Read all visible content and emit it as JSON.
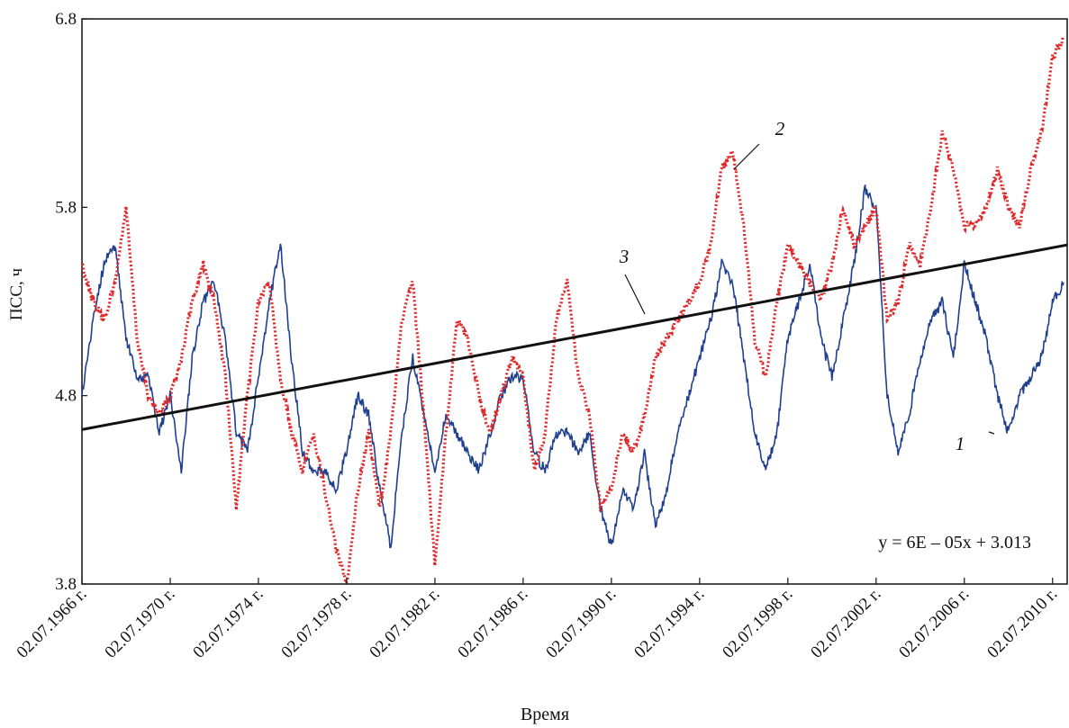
{
  "chart_data": {
    "type": "line",
    "xlabel": "Время",
    "ylabel": "ПСС, ч",
    "ylim": [
      3.8,
      6.8
    ],
    "xlim": [
      "1966-07-02",
      "2011-03-01"
    ],
    "yticks": [
      "3.8",
      "4.8",
      "5.8",
      "6.8"
    ],
    "xticks": [
      "02.07.1966 г.",
      "02.07.1970 г.",
      "02.07.1974 г.",
      "02.07.1978 г.",
      "02.07.1982 г.",
      "02.07.1986 г.",
      "02.07.1990 г.",
      "02.07.1994 г.",
      "02.07.1998 г.",
      "02.07.2002 г.",
      "02.07.2006 г.",
      "02.07.2010 г."
    ],
    "xtick_dates": [
      "1966-07-02",
      "1970-07-02",
      "1974-07-02",
      "1978-07-02",
      "1982-07-02",
      "1986-07-02",
      "1990-07-02",
      "1994-07-02",
      "1998-07-02",
      "2002-07-02",
      "2006-07-02",
      "2010-07-02"
    ],
    "grid": false,
    "equation": "y = 6E – 05x + 3.013",
    "series": [
      {
        "label": "1",
        "color": "#1f3f8f",
        "style": "solid",
        "x": [
          "1966-07",
          "1967-01",
          "1967-07",
          "1968-01",
          "1968-07",
          "1969-01",
          "1969-07",
          "1970-01",
          "1970-07",
          "1971-01",
          "1971-07",
          "1972-01",
          "1972-07",
          "1973-01",
          "1973-07",
          "1974-01",
          "1974-07",
          "1975-01",
          "1975-07",
          "1976-01",
          "1976-07",
          "1977-01",
          "1977-07",
          "1978-01",
          "1978-07",
          "1979-01",
          "1979-07",
          "1980-01",
          "1980-07",
          "1981-01",
          "1981-07",
          "1982-01",
          "1982-07",
          "1983-01",
          "1983-07",
          "1984-01",
          "1984-07",
          "1985-01",
          "1985-07",
          "1986-01",
          "1986-07",
          "1987-01",
          "1987-07",
          "1988-01",
          "1988-07",
          "1989-01",
          "1989-07",
          "1990-01",
          "1990-07",
          "1991-01",
          "1991-07",
          "1992-01",
          "1992-07",
          "1993-01",
          "1993-07",
          "1994-01",
          "1994-07",
          "1995-01",
          "1995-07",
          "1996-01",
          "1996-07",
          "1997-01",
          "1997-07",
          "1998-01",
          "1998-07",
          "1999-01",
          "1999-07",
          "2000-01",
          "2000-07",
          "2001-01",
          "2001-07",
          "2002-01",
          "2002-07",
          "2003-01",
          "2003-07",
          "2004-01",
          "2004-07",
          "2005-01",
          "2005-07",
          "2006-01",
          "2006-07",
          "2007-01",
          "2007-07",
          "2008-01",
          "2008-07",
          "2009-01",
          "2009-07",
          "2010-01",
          "2010-07",
          "2011-01"
        ],
        "y": [
          4.8,
          5.2,
          5.5,
          5.6,
          5.1,
          4.9,
          4.9,
          4.6,
          4.8,
          4.4,
          5.0,
          5.3,
          5.4,
          5.1,
          4.6,
          4.5,
          4.9,
          5.3,
          5.6,
          5.0,
          4.5,
          4.4,
          4.4,
          4.3,
          4.5,
          4.8,
          4.7,
          4.3,
          4.0,
          4.6,
          5.0,
          4.7,
          4.4,
          4.7,
          4.6,
          4.5,
          4.4,
          4.6,
          4.8,
          4.9,
          4.9,
          4.5,
          4.4,
          4.6,
          4.6,
          4.5,
          4.6,
          4.2,
          4.0,
          4.3,
          4.2,
          4.5,
          4.1,
          4.3,
          4.6,
          4.8,
          5.0,
          5.2,
          5.5,
          5.4,
          5.0,
          4.6,
          4.4,
          4.6,
          5.1,
          5.3,
          5.5,
          5.1,
          4.9,
          5.2,
          5.5,
          5.9,
          5.8,
          4.8,
          4.5,
          4.7,
          5.0,
          5.2,
          5.3,
          5.0,
          5.5,
          5.3,
          5.1,
          4.8,
          4.6,
          4.8,
          4.9,
          5.0,
          5.3,
          5.4
        ]
      },
      {
        "label": "2",
        "color": "#e0282a",
        "style": "dotted",
        "x": [
          "1966-07",
          "1967-01",
          "1967-07",
          "1968-01",
          "1968-07",
          "1969-01",
          "1969-07",
          "1970-01",
          "1970-07",
          "1971-01",
          "1971-07",
          "1972-01",
          "1972-07",
          "1973-01",
          "1973-07",
          "1974-01",
          "1974-07",
          "1975-01",
          "1975-07",
          "1976-01",
          "1976-07",
          "1977-01",
          "1977-07",
          "1978-01",
          "1978-07",
          "1979-01",
          "1979-07",
          "1980-01",
          "1980-07",
          "1981-01",
          "1981-07",
          "1982-01",
          "1982-07",
          "1983-01",
          "1983-07",
          "1984-01",
          "1984-07",
          "1985-01",
          "1985-07",
          "1986-01",
          "1986-07",
          "1987-01",
          "1987-07",
          "1988-01",
          "1988-07",
          "1989-01",
          "1989-07",
          "1990-01",
          "1990-07",
          "1991-01",
          "1991-07",
          "1992-01",
          "1992-07",
          "1993-01",
          "1993-07",
          "1994-01",
          "1994-07",
          "1995-01",
          "1995-07",
          "1996-01",
          "1996-07",
          "1997-01",
          "1997-07",
          "1998-01",
          "1998-07",
          "1999-01",
          "1999-07",
          "2000-01",
          "2000-07",
          "2001-01",
          "2001-07",
          "2002-01",
          "2002-07",
          "2003-01",
          "2003-07",
          "2004-01",
          "2004-07",
          "2005-01",
          "2005-07",
          "2006-01",
          "2006-07",
          "2007-01",
          "2007-07",
          "2008-01",
          "2008-07",
          "2009-01",
          "2009-07",
          "2010-01",
          "2010-07",
          "2011-01"
        ],
        "y": [
          5.5,
          5.3,
          5.2,
          5.4,
          5.8,
          5.1,
          4.8,
          4.7,
          4.8,
          5.0,
          5.3,
          5.5,
          5.3,
          4.9,
          4.2,
          4.8,
          5.3,
          5.4,
          4.9,
          4.6,
          4.4,
          4.6,
          4.3,
          4.0,
          3.8,
          4.3,
          4.6,
          4.2,
          4.6,
          5.2,
          5.4,
          4.7,
          3.9,
          4.6,
          5.2,
          5.1,
          4.8,
          4.6,
          4.8,
          5.0,
          4.9,
          4.4,
          4.6,
          5.2,
          5.4,
          4.9,
          4.7,
          4.2,
          4.3,
          4.6,
          4.5,
          4.7,
          5.0,
          5.1,
          5.2,
          5.3,
          5.4,
          5.6,
          6.0,
          6.1,
          5.7,
          5.1,
          4.9,
          5.3,
          5.6,
          5.5,
          5.4,
          5.3,
          5.5,
          5.8,
          5.6,
          5.7,
          5.8,
          5.2,
          5.3,
          5.6,
          5.5,
          5.8,
          6.2,
          6.0,
          5.7,
          5.7,
          5.8,
          6.0,
          5.8,
          5.7,
          6.0,
          6.2,
          6.6,
          6.7
        ]
      },
      {
        "label": "3",
        "color": "#111111",
        "style": "solid",
        "x": [
          "1966-07-02",
          "2011-03-01"
        ],
        "y": [
          4.62,
          5.6
        ]
      }
    ]
  }
}
